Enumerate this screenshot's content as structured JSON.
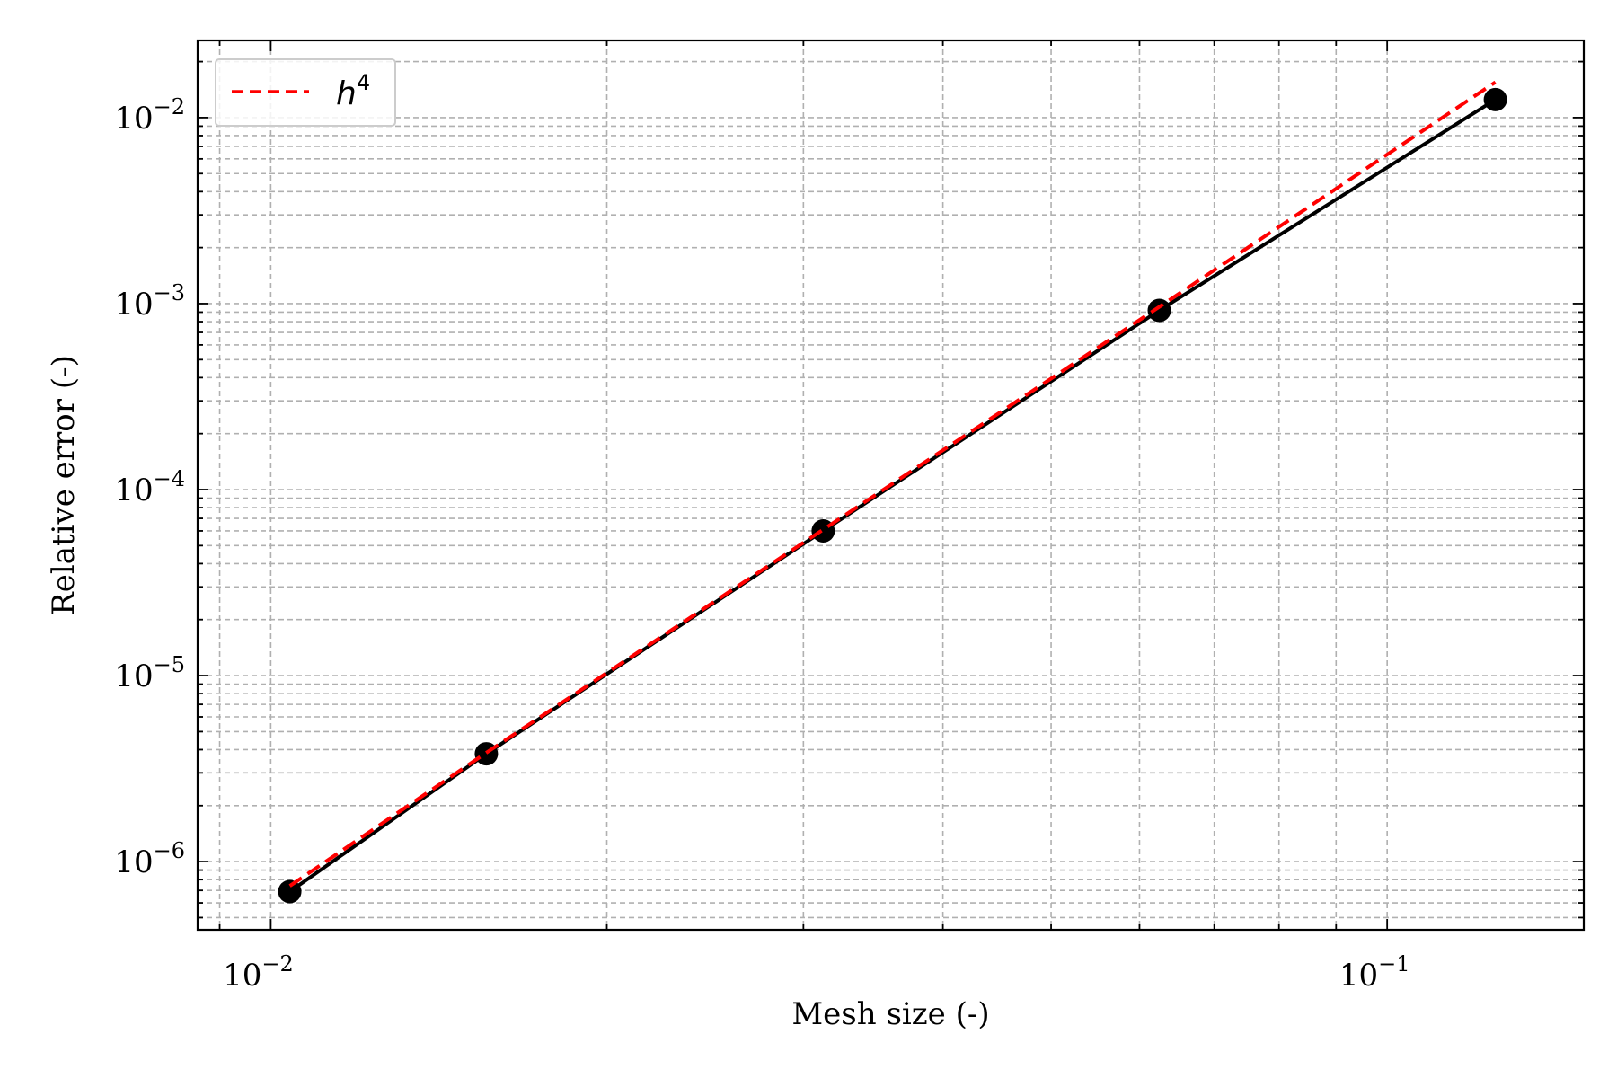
{
  "chart_data": {
    "type": "line",
    "title": "",
    "xlabel": "Mesh size (-)",
    "ylabel": "Relative error (-)",
    "xscale": "log",
    "yscale": "log",
    "xlim": [
      0.0086,
      0.15
    ],
    "ylim": [
      4.3e-07,
      0.026
    ],
    "grid": true,
    "legend_position": "top-left",
    "x_ticks": [
      {
        "base": "10",
        "exp": "−2",
        "value": 0.01
      },
      {
        "base": "10",
        "exp": "−1",
        "value": 0.1
      }
    ],
    "y_ticks": [
      {
        "base": "10",
        "exp": "−6",
        "value": 1e-06
      },
      {
        "base": "10",
        "exp": "−5",
        "value": 1e-05
      },
      {
        "base": "10",
        "exp": "−4",
        "value": 0.0001
      },
      {
        "base": "10",
        "exp": "−3",
        "value": 0.001
      },
      {
        "base": "10",
        "exp": "−2",
        "value": 0.01
      }
    ],
    "series": [
      {
        "color": "#000000",
        "style": "solid",
        "marker": "circle",
        "x": [
          0.0104,
          0.0156,
          0.03125,
          0.0625,
          0.125
        ],
        "y": [
          6.9e-07,
          3.8e-06,
          6e-05,
          0.00092,
          0.0125
        ]
      },
      {
        "name": "h",
        "name_sup": "4",
        "color": "#ff0000",
        "style": "dashed",
        "marker": "none",
        "x": [
          0.0104,
          0.0156,
          0.03125,
          0.0625,
          0.125
        ],
        "y": [
          7.4e-07,
          3.85e-06,
          6.1e-05,
          0.00096,
          0.0155
        ]
      }
    ]
  }
}
